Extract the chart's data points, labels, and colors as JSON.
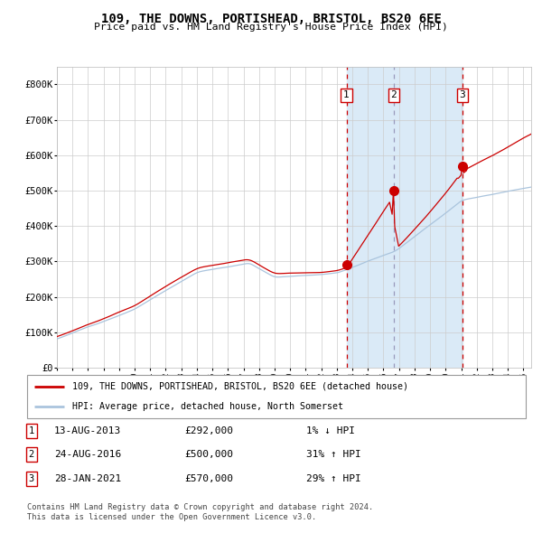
{
  "title": "109, THE DOWNS, PORTISHEAD, BRISTOL, BS20 6EE",
  "subtitle": "Price paid vs. HM Land Registry's House Price Index (HPI)",
  "hpi_line_color": "#aac4dd",
  "price_line_color": "#cc0000",
  "sale_marker_color": "#cc0000",
  "background_color": "#ffffff",
  "shaded_region_color": "#daeaf7",
  "grid_color": "#cccccc",
  "ylim": [
    0,
    850000
  ],
  "yticks": [
    0,
    100000,
    200000,
    300000,
    400000,
    500000,
    600000,
    700000,
    800000
  ],
  "ytick_labels": [
    "£0",
    "£100K",
    "£200K",
    "£300K",
    "£400K",
    "£500K",
    "£600K",
    "£700K",
    "£800K"
  ],
  "sale1": {
    "date_num": 2013.62,
    "price": 292000,
    "label": "1"
  },
  "sale2": {
    "date_num": 2016.65,
    "price": 500000,
    "label": "2"
  },
  "sale3": {
    "date_num": 2021.08,
    "price": 570000,
    "label": "3"
  },
  "table_rows": [
    {
      "num": "1",
      "date": "13-AUG-2013",
      "price": "£292,000",
      "change": "1% ↓ HPI"
    },
    {
      "num": "2",
      "date": "24-AUG-2016",
      "price": "£500,000",
      "change": "31% ↑ HPI"
    },
    {
      "num": "3",
      "date": "28-JAN-2021",
      "price": "£570,000",
      "change": "29% ↑ HPI"
    }
  ],
  "legend_line1": "109, THE DOWNS, PORTISHEAD, BRISTOL, BS20 6EE (detached house)",
  "legend_line2": "HPI: Average price, detached house, North Somerset",
  "footer1": "Contains HM Land Registry data © Crown copyright and database right 2024.",
  "footer2": "This data is licensed under the Open Government Licence v3.0.",
  "xmin": 1995.0,
  "xmax": 2025.5
}
